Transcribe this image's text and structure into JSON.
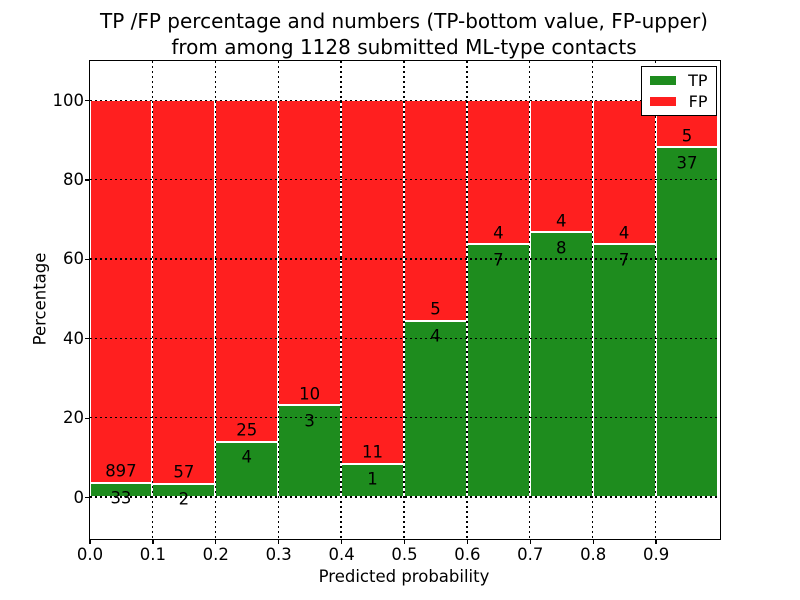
{
  "chart_data": {
    "type": "bar",
    "stacked": true,
    "title_line1": "TP /FP percentage and numbers (TP-bottom value, FP-upper)",
    "title_line2": "from among 1128 submitted ML-type contacts",
    "xlabel": "Predicted probability",
    "ylabel": "Percentage",
    "xlim": [
      0.0,
      1.0
    ],
    "ylim": [
      -10.2,
      110
    ],
    "bin_width": 0.1,
    "grid": "dotted",
    "x_ticks": [
      {
        "value": 0.0,
        "label": "0.0"
      },
      {
        "value": 0.1,
        "label": "0.1"
      },
      {
        "value": 0.2,
        "label": "0.2"
      },
      {
        "value": 0.3,
        "label": "0.3"
      },
      {
        "value": 0.4,
        "label": "0.4"
      },
      {
        "value": 0.5,
        "label": "0.5"
      },
      {
        "value": 0.6,
        "label": "0.6"
      },
      {
        "value": 0.7,
        "label": "0.7"
      },
      {
        "value": 0.8,
        "label": "0.8"
      },
      {
        "value": 0.9,
        "label": "0.9"
      }
    ],
    "y_ticks": [
      {
        "value": 0,
        "label": "0"
      },
      {
        "value": 20,
        "label": "20"
      },
      {
        "value": 40,
        "label": "40"
      },
      {
        "value": 60,
        "label": "60"
      },
      {
        "value": 80,
        "label": "80"
      },
      {
        "value": 100,
        "label": "100"
      }
    ],
    "series": [
      {
        "name": "TP",
        "color": "#1e8c1e",
        "counts": [
          33,
          2,
          4,
          3,
          1,
          4,
          7,
          8,
          7,
          37
        ]
      },
      {
        "name": "FP",
        "color": "#ff1f1f",
        "counts": [
          897,
          57,
          25,
          10,
          11,
          5,
          4,
          4,
          4,
          5
        ]
      }
    ],
    "legend": {
      "position": "upper right",
      "entries": [
        {
          "label": "TP",
          "color": "#1e8c1e"
        },
        {
          "label": "FP",
          "color": "#ff1f1f"
        }
      ]
    }
  }
}
